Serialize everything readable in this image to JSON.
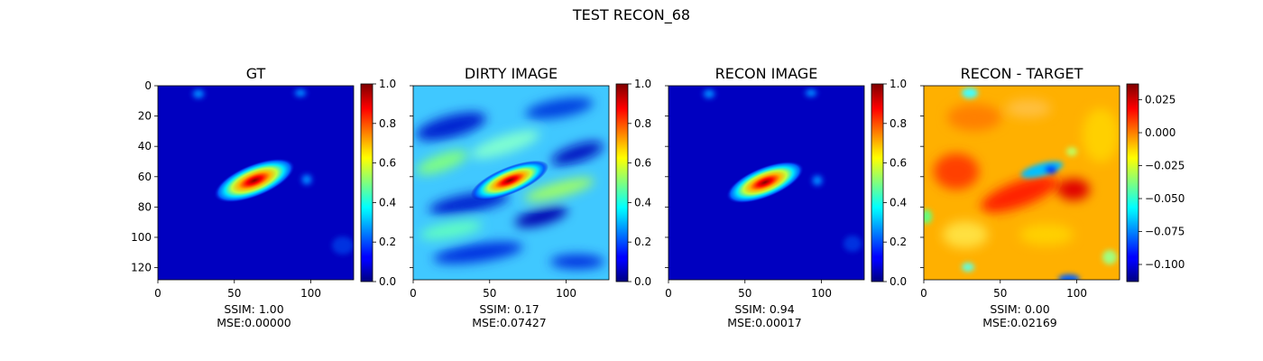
{
  "figure": {
    "title": "TEST RECON_68"
  },
  "chart_data": [
    {
      "type": "heatmap",
      "title": "GT",
      "colormap": "jet",
      "x_ticks": [
        0,
        50,
        100
      ],
      "y_ticks": [
        0,
        20,
        40,
        60,
        80,
        100,
        120
      ],
      "xlim": [
        0,
        128
      ],
      "ylim": [
        128,
        0
      ],
      "show_y_tick_labels": true,
      "colorbar": {
        "range": [
          0.0,
          1.0
        ],
        "ticks": [
          0.0,
          0.2,
          0.4,
          0.6,
          0.8,
          1.0
        ],
        "tick_labels": [
          "0.0",
          "0.2",
          "0.4",
          "0.6",
          "0.8",
          "1.0"
        ]
      },
      "caption_lines": [
        "SSIM: 1.00",
        "MSE:0.00000"
      ]
    },
    {
      "type": "heatmap",
      "title": "DIRTY IMAGE",
      "colormap": "jet",
      "x_ticks": [
        0,
        50,
        100
      ],
      "y_ticks": [
        0,
        20,
        40,
        60,
        80,
        100,
        120
      ],
      "xlim": [
        0,
        128
      ],
      "ylim": [
        128,
        0
      ],
      "show_y_tick_labels": false,
      "colorbar": {
        "range": [
          0.0,
          1.0
        ],
        "ticks": [
          0.0,
          0.2,
          0.4,
          0.6,
          0.8,
          1.0
        ],
        "tick_labels": [
          "0.0",
          "0.2",
          "0.4",
          "0.6",
          "0.8",
          "1.0"
        ]
      },
      "caption_lines": [
        "SSIM: 0.17",
        "MSE:0.07427"
      ]
    },
    {
      "type": "heatmap",
      "title": "RECON IMAGE",
      "colormap": "jet",
      "x_ticks": [
        0,
        50,
        100
      ],
      "y_ticks": [
        0,
        20,
        40,
        60,
        80,
        100,
        120
      ],
      "xlim": [
        0,
        128
      ],
      "ylim": [
        128,
        0
      ],
      "show_y_tick_labels": false,
      "colorbar": {
        "range": [
          0.0,
          1.0
        ],
        "ticks": [
          0.0,
          0.2,
          0.4,
          0.6,
          0.8,
          1.0
        ],
        "tick_labels": [
          "0.0",
          "0.2",
          "0.4",
          "0.6",
          "0.8",
          "1.0"
        ]
      },
      "caption_lines": [
        "SSIM: 0.94",
        "MSE:0.00017"
      ]
    },
    {
      "type": "heatmap",
      "title": "RECON - TARGET",
      "colormap": "jet",
      "x_ticks": [
        0,
        50,
        100
      ],
      "y_ticks": [
        0,
        20,
        40,
        60,
        80,
        100,
        120
      ],
      "xlim": [
        0,
        128
      ],
      "ylim": [
        128,
        0
      ],
      "show_y_tick_labels": false,
      "colorbar": {
        "range": [
          -0.113,
          0.037
        ],
        "ticks": [
          0.025,
          0.0,
          -0.025,
          -0.05,
          -0.075,
          -0.1
        ],
        "tick_labels": [
          "0.025",
          "0.000",
          "−0.025",
          "−0.050",
          "−0.075",
          "−0.100"
        ]
      },
      "caption_lines": [
        "SSIM: 0.00",
        "MSE:0.02169"
      ]
    }
  ]
}
